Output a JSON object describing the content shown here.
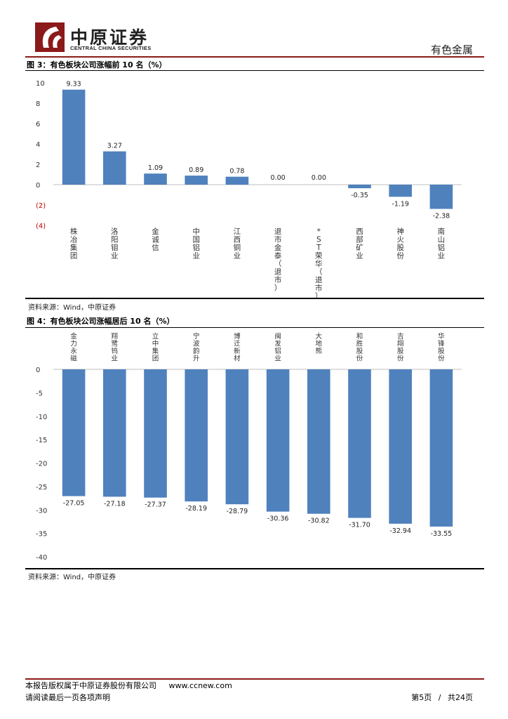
{
  "header": {
    "company_cn": "中原证券",
    "company_en": "CENTRAL CHINA SECURITIES",
    "section": "有色金属",
    "accent": "#8b1a1a"
  },
  "chart_data": [
    {
      "type": "bar",
      "title": "图 3：有色板块公司涨幅前 10 名（%）",
      "categories": [
        "株冶集团",
        "洛阳钼业",
        "金诚信",
        "中国铝业",
        "江西铜业",
        "退市金泰（退市）",
        "*ST荣华（退市）",
        "西部矿业",
        "神火股份",
        "南山铝业"
      ],
      "values": [
        9.33,
        3.27,
        1.09,
        0.89,
        0.78,
        0.0,
        0.0,
        -0.35,
        -1.19,
        -2.38
      ],
      "value_labels": [
        "9.33",
        "3.27",
        "1.09",
        "0.89",
        "0.78",
        "0.00",
        "0.00",
        "-0.35",
        "-1.19",
        "-2.38"
      ],
      "yticks": [
        10,
        8,
        6,
        4,
        2,
        0,
        -2,
        -4
      ],
      "ytick_labels": [
        "10",
        "8",
        "6",
        "4",
        "2",
        "0",
        "(2)",
        "(4)"
      ],
      "ylim": [
        -4,
        10
      ],
      "xlabel": "",
      "ylabel": "",
      "bar_color": "#4f81bd",
      "source": "资料来源：Wind，中原证券"
    },
    {
      "type": "bar",
      "title": "图 4：有色板块公司涨幅居后 10 名（%）",
      "categories": [
        "金力永磁",
        "翔鹭钨业",
        "立中集团",
        "宁波韵升",
        "博迁新材",
        "闽发铝业",
        "大地熊",
        "和胜股份",
        "吉翔股份",
        "华锋股份"
      ],
      "values": [
        -27.05,
        -27.18,
        -27.37,
        -28.19,
        -28.79,
        -30.36,
        -30.82,
        -31.7,
        -32.94,
        -33.55
      ],
      "value_labels": [
        "-27.05",
        "-27.18",
        "-27.37",
        "-28.19",
        "-28.79",
        "-30.36",
        "-30.82",
        "-31.70",
        "-32.94",
        "-33.55"
      ],
      "yticks": [
        0,
        -5,
        -10,
        -15,
        -20,
        -25,
        -30,
        -35,
        -40
      ],
      "ytick_labels": [
        "0",
        "-5",
        "-10",
        "-15",
        "-20",
        "-25",
        "-30",
        "-35",
        "-40"
      ],
      "ylim": [
        -40,
        0
      ],
      "xlabel": "",
      "ylabel": "",
      "bar_color": "#4f81bd",
      "source": "资料来源：Wind，中原证券"
    }
  ],
  "footer": {
    "copyright": "本报告版权属于中原证券股份有限公司",
    "website": "www.ccnew.com",
    "disclaimer": "请阅读最后一页各项声明",
    "page_current_label": "第5页",
    "page_sep": "/",
    "page_total_label": "共24页"
  }
}
